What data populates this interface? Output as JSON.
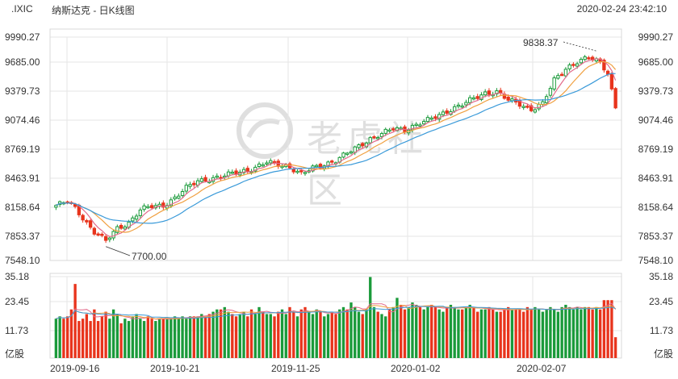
{
  "header": {
    "symbol": ".IXIC",
    "name": "纳斯达克 - 日K线图",
    "datetime": "2020-02-24 23:42:10"
  },
  "price_axis": [
    "9990.27",
    "9685.00",
    "9379.73",
    "9074.46",
    "8769.19",
    "8463.91",
    "8158.64",
    "7853.37",
    "7548.10"
  ],
  "volume_axis": [
    "35.18",
    "23.45",
    "11.73",
    "亿股"
  ],
  "x_axis": [
    "2019-09-16",
    "2019-10-21",
    "2019-11-25",
    "2020-01-02",
    "2020-02-07"
  ],
  "annotations": {
    "high": "9838.37",
    "low": "7700.00"
  },
  "watermark": {
    "text": "老虎社区"
  },
  "colors": {
    "up": "#1a9a3a",
    "down": "#e8341c",
    "ma5": "#e26a8a",
    "ma10": "#f0a040",
    "ma20": "#3a9ad9",
    "grid": "#e6e6e6"
  },
  "chart_data": {
    "type": "candlestick",
    "title": ".IXIC 纳斯达克 - 日K线图",
    "ylim": [
      7548.1,
      9990.27
    ],
    "volume_ylim": [
      0,
      35.18
    ],
    "high_marker": 9838.37,
    "low_marker": 7700.0,
    "price_anchors": [
      [
        0,
        8150
      ],
      [
        3,
        8190
      ],
      [
        5,
        8120
      ],
      [
        8,
        7960
      ],
      [
        10,
        7860
      ],
      [
        13,
        7760
      ],
      [
        16,
        7900
      ],
      [
        19,
        7960
      ],
      [
        22,
        8100
      ],
      [
        25,
        8140
      ],
      [
        28,
        8150
      ],
      [
        31,
        8230
      ],
      [
        34,
        8340
      ],
      [
        37,
        8420
      ],
      [
        40,
        8440
      ],
      [
        43,
        8460
      ],
      [
        46,
        8500
      ],
      [
        49,
        8530
      ],
      [
        52,
        8560
      ],
      [
        55,
        8620
      ],
      [
        58,
        8600
      ],
      [
        61,
        8570
      ],
      [
        64,
        8490
      ],
      [
        67,
        8560
      ],
      [
        70,
        8600
      ],
      [
        73,
        8640
      ],
      [
        76,
        8720
      ],
      [
        79,
        8800
      ],
      [
        82,
        8880
      ],
      [
        85,
        8930
      ],
      [
        88,
        8990
      ],
      [
        91,
        8980
      ],
      [
        94,
        9030
      ],
      [
        97,
        9080
      ],
      [
        100,
        9140
      ],
      [
        103,
        9200
      ],
      [
        106,
        9250
      ],
      [
        109,
        9320
      ],
      [
        112,
        9380
      ],
      [
        115,
        9390
      ],
      [
        118,
        9300
      ],
      [
        121,
        9260
      ],
      [
        124,
        9200
      ],
      [
        127,
        9260
      ],
      [
        130,
        9520
      ],
      [
        133,
        9650
      ],
      [
        136,
        9720
      ],
      [
        139,
        9760
      ],
      [
        142,
        9720
      ],
      [
        144,
        9600
      ],
      [
        146,
        9220
      ]
    ],
    "volume_values": [
      17,
      18,
      17,
      18,
      21,
      32,
      16,
      17,
      19,
      16,
      21,
      16,
      18,
      20,
      17,
      21,
      19,
      15,
      17,
      16,
      18,
      19,
      17,
      16,
      18,
      17,
      16,
      17,
      17,
      17,
      17,
      18,
      17,
      18,
      17,
      18,
      18,
      18,
      19,
      18,
      19,
      20,
      21,
      21,
      22,
      20,
      19,
      18,
      19,
      20,
      18,
      21,
      19,
      22,
      20,
      19,
      19,
      18,
      20,
      21,
      19,
      22,
      20,
      18,
      21,
      22,
      20,
      19,
      21,
      20,
      18,
      19,
      20,
      19,
      21,
      22,
      21,
      24,
      22,
      20,
      19,
      21,
      35,
      22,
      20,
      19,
      18,
      21,
      22,
      26,
      23,
      21,
      22,
      24,
      23,
      22,
      21,
      22,
      23,
      22,
      21,
      20,
      22,
      23,
      22,
      21,
      21,
      22,
      23,
      22,
      20,
      21,
      21,
      22,
      21,
      20,
      20,
      21,
      22,
      21,
      21,
      21,
      20,
      22,
      21,
      22,
      21,
      20,
      21,
      22,
      21,
      20,
      22,
      23,
      22,
      21,
      22,
      21,
      22,
      22,
      21,
      22,
      21,
      25,
      25,
      25,
      9
    ]
  }
}
